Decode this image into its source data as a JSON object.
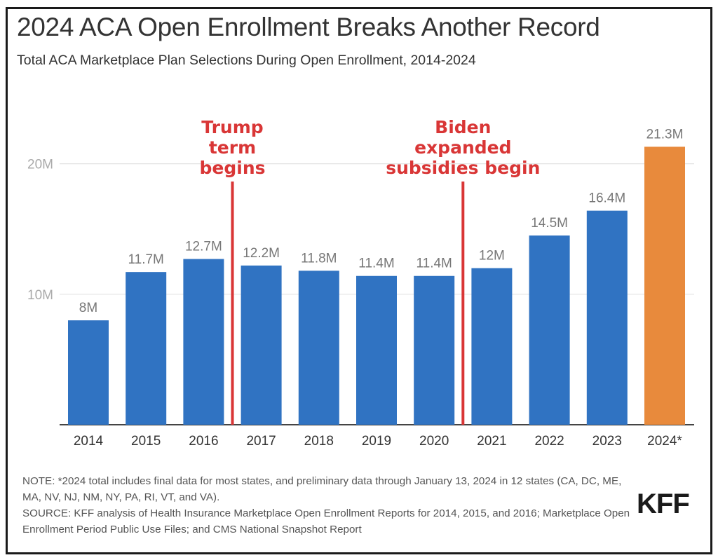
{
  "header": {
    "title": "2024 ACA Open Enrollment Breaks Another Record",
    "subtitle": "Total ACA Marketplace Plan Selections During Open Enrollment, 2014-2024"
  },
  "chart_data": {
    "type": "bar",
    "title": "2024 ACA Open Enrollment Breaks Another Record",
    "subtitle": "Total ACA Marketplace Plan Selections During Open Enrollment, 2014-2024",
    "xlabel": "",
    "ylabel": "",
    "categories": [
      "2014",
      "2015",
      "2016",
      "2017",
      "2018",
      "2019",
      "2020",
      "2021",
      "2022",
      "2023",
      "2024*"
    ],
    "values": [
      8.0,
      11.7,
      12.7,
      12.2,
      11.8,
      11.4,
      11.4,
      12.0,
      14.5,
      16.4,
      21.3
    ],
    "units": "millions",
    "data_labels": [
      "8M",
      "11.7M",
      "12.7M",
      "12.2M",
      "11.8M",
      "11.4M",
      "11.4M",
      "12M",
      "14.5M",
      "16.4M",
      "21.3M"
    ],
    "ylim": [
      0,
      22
    ],
    "yticks": [
      10,
      20
    ],
    "ytick_labels": [
      "10M",
      "20M"
    ],
    "grid": true,
    "colors": {
      "bar": "#3073c2",
      "highlight_bar": "#e88a3c",
      "annotation": "#d93636",
      "grid": "#e3e3e3",
      "axis": "#444444",
      "tick_label": "#aaaaaa",
      "data_label": "#777777",
      "category_label": "#333333"
    },
    "highlight_category": "2024*",
    "annotations": [
      {
        "text_lines": [
          "Trump",
          "term",
          "begins"
        ],
        "between": [
          "2016",
          "2017"
        ]
      },
      {
        "text_lines": [
          "Biden",
          "expanded",
          "subsidies begin"
        ],
        "between": [
          "2020",
          "2021"
        ]
      }
    ]
  },
  "footer": {
    "note": "NOTE: *2024 total includes final data for most states, and preliminary data through January 13, 2024 in 12 states (CA, DC, ME, MA, NV, NJ, NM, NY, PA, RI, VT, and VA).",
    "source": "SOURCE: KFF analysis of Health Insurance Marketplace Open Enrollment Reports for 2014, 2015, and 2016; Marketplace Open Enrollment Period Public Use Files; and CMS National Snapshot Report",
    "logo": "KFF"
  }
}
